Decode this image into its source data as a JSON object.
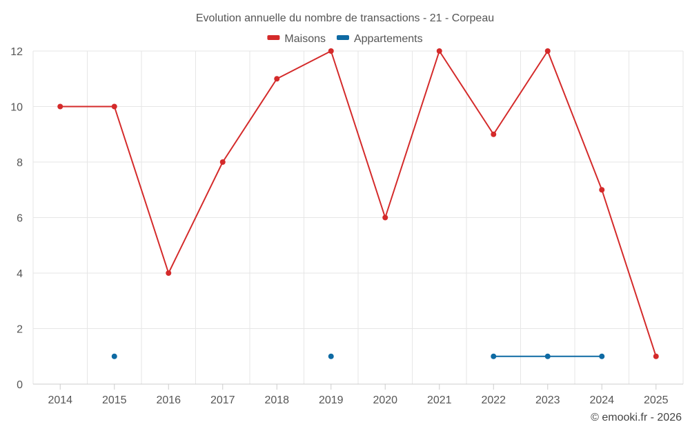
{
  "chart_data": {
    "type": "line",
    "title": "Evolution annuelle du nombre de transactions - 21 - Corpeau",
    "categories": [
      "2014",
      "2015",
      "2016",
      "2017",
      "2018",
      "2019",
      "2020",
      "2021",
      "2022",
      "2023",
      "2024",
      "2025"
    ],
    "series": [
      {
        "name": "Maisons",
        "color": "#d42a2a",
        "values": [
          10,
          10,
          4,
          8,
          11,
          12,
          6,
          12,
          9,
          12,
          7,
          1
        ]
      },
      {
        "name": "Appartements",
        "color": "#0e6aa3",
        "values": [
          null,
          1,
          null,
          null,
          null,
          1,
          null,
          null,
          1,
          1,
          1,
          null
        ]
      }
    ],
    "ylim": [
      0,
      12
    ],
    "yticks": [
      0,
      2,
      4,
      6,
      8,
      10,
      12
    ],
    "grid": true,
    "legend": "top-center",
    "xlabel": "",
    "ylabel": ""
  },
  "credit": "© emooki.fr - 2026"
}
